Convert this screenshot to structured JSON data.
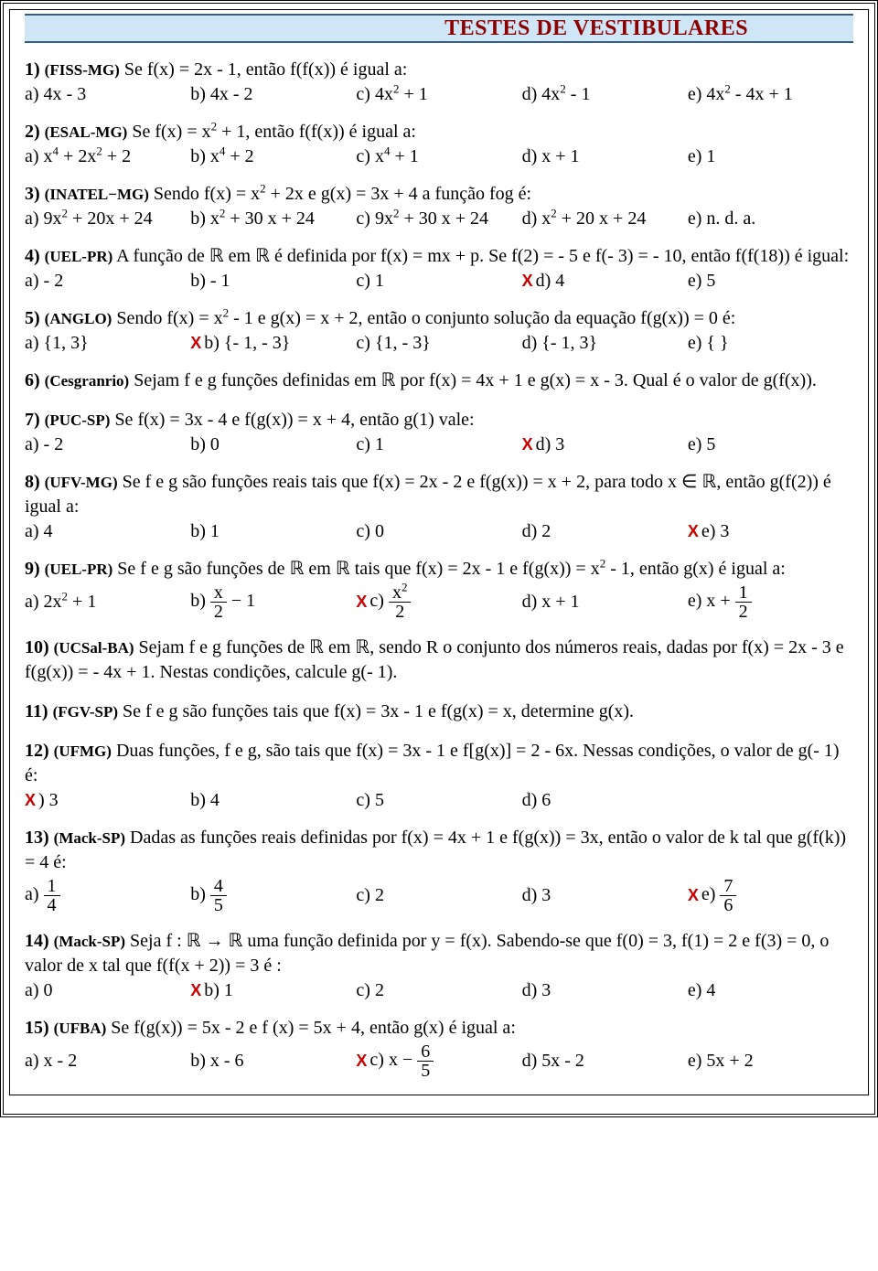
{
  "colors": {
    "title_bg": "#cfe6f7",
    "title_border": "#355e8d",
    "title_text": "#8b0000",
    "mark": "#c00"
  },
  "title": "TESTES DE VESTIBULARES",
  "questions": [
    {
      "n": "1)",
      "src": "(FISS-MG)",
      "stem": " Se f(x) = 2x - 1, então f(f(x)) é igual a:",
      "opts": [
        "a) 4x - 3",
        "b) 4x - 2",
        "c) 4x^2 + 1",
        "d) 4x^2 - 1",
        "e) 4x^2 - 4x + 1"
      ],
      "mark": -1
    },
    {
      "n": "2)",
      "src": "(ESAL-MG)",
      "stem": " Se f(x) = x^2 + 1, então f(f(x)) é igual a:",
      "opts": [
        "a) x^4 + 2x^2 + 2",
        "b) x^4 + 2",
        "c) x^4 + 1",
        "d) x + 1",
        "e) 1"
      ],
      "mark": -1
    },
    {
      "n": "3)",
      "src": "(INATEL−MG)",
      "stem": " Sendo f(x) = x^2 + 2x e g(x) = 3x + 4 a função fog é:",
      "opts": [
        "a) 9x^2 + 20x + 24",
        "b) x^2 + 30 x + 24",
        "c) 9x^2 + 30 x + 24",
        "d) x^2 + 20 x + 24",
        "e) n. d. a."
      ],
      "mark": -1
    },
    {
      "n": "4)",
      "src": "(UEL-PR)",
      "stem": " A função de ℝ em ℝ é definida por f(x) = mx + p. Se f(2) = - 5 e f(- 3) = - 10, então f(f(18)) é igual:",
      "opts": [
        "a) - 2",
        "b) - 1",
        "c) 1",
        "d) 4",
        "e) 5"
      ],
      "mark": 3
    },
    {
      "n": "5)",
      "src": "(ANGLO)",
      "stem": " Sendo f(x) = x^2 - 1 e g(x) = x + 2, então o conjunto solução da equação f(g(x)) = 0 é:",
      "opts": [
        "a) {1, 3}",
        "b) {- 1, - 3}",
        "c) {1, - 3}",
        "d) {- 1, 3}",
        "e) { }"
      ],
      "mark": 1
    },
    {
      "n": "6)",
      "src": "(Cesgranrio)",
      "stem": " Sejam f e g funções definidas em ℝ por f(x) = 4x + 1 e g(x) = x - 3. Qual é o valor de g(f(x)).",
      "opts": [],
      "mark": -1
    },
    {
      "n": "7)",
      "src": "(PUC-SP)",
      "stem": " Se f(x) = 3x - 4 e f(g(x)) = x + 4, então g(1) vale:",
      "opts": [
        "a) - 2",
        "b) 0",
        "c) 1",
        "d) 3",
        "e) 5"
      ],
      "mark": 3
    },
    {
      "n": "8)",
      "src": "(UFV-MG)",
      "stem": " Se f e g são funções reais tais que f(x) = 2x - 2 e f(g(x)) = x + 2, para todo x ∈ ℝ, então g(f(2)) é igual a:",
      "opts": [
        "a) 4",
        "b) 1",
        "c) 0",
        "d) 2",
        "e) 3"
      ],
      "mark": 4
    },
    {
      "n": "9)",
      "src": "(UEL-PR)",
      "stem": " Se f e g são funções de ℝ em ℝ tais que f(x) = 2x - 1 e f(g(x)) = x^2 - 1, então g(x) é igual a:",
      "opts": [
        "a) 2x^2 + 1",
        "b) FRAC:x:2 − 1",
        "c) FRAC:x^2:2",
        "d) x + 1",
        "e) x + FRAC:1:2"
      ],
      "mark": 2
    },
    {
      "n": "10)",
      "src": "(UCSal-BA)",
      "stem": " Sejam f e g funções de ℝ em ℝ, sendo R o conjunto dos números reais, dadas por f(x) = 2x - 3 e f(g(x)) = - 4x + 1. Nestas condições, calcule g(- 1).",
      "opts": [],
      "mark": -1
    },
    {
      "n": "11)",
      "src": "(FGV-SP)",
      "stem": " Se f e g são funções tais que f(x) = 3x - 1 e f(g(x) = x, determine g(x).",
      "opts": [],
      "mark": -1
    },
    {
      "n": "12)",
      "src": "(UFMG)",
      "stem": " Duas funções, f e g, são tais que f(x) = 3x - 1 e f[g(x)] = 2 - 6x. Nessas condições, o valor de g(- 1) é:",
      "opts": [
        "a) 3",
        "b) 4",
        "c) 5",
        "d) 6"
      ],
      "mark": 0,
      "marklabel": true
    },
    {
      "n": "13)",
      "src": "(Mack-SP)",
      "stem": " Dadas as funções reais definidas por f(x) = 4x + 1 e f(g(x)) = 3x, então o valor de k tal que g(f(k)) = 4 é:",
      "opts": [
        "a) FRAC:1:4",
        "b) FRAC:4:5",
        "c) 2",
        "d) 3",
        "e) FRAC:7:6"
      ],
      "mark": 4
    },
    {
      "n": "14)",
      "src": "(Mack-SP)",
      "stem": " Seja f : ℝ → ℝ uma função definida por y = f(x). Sabendo-se que f(0) = 3, f(1) = 2 e f(3) = 0, o valor de x tal que f(f(x + 2)) = 3 é :",
      "opts": [
        "a) 0",
        "b) 1",
        "c) 2",
        "d) 3",
        "e) 4"
      ],
      "mark": 1
    },
    {
      "n": "15)",
      "src": "(UFBA)",
      "stem": " Se f(g(x)) = 5x - 2 e f (x) = 5x + 4, então g(x) é igual a:",
      "opts": [
        "a) x - 2",
        "b) x - 6",
        "c) x − FRAC:6:5",
        "d) 5x - 2",
        "e) 5x + 2"
      ],
      "mark": 2
    }
  ]
}
